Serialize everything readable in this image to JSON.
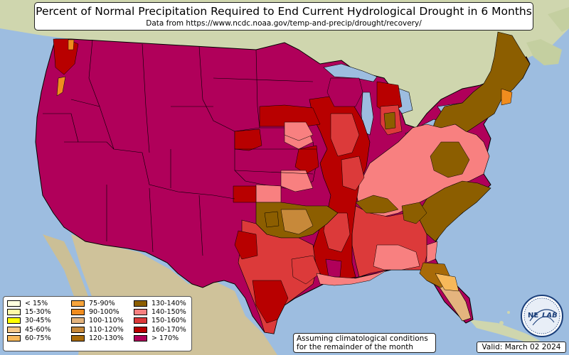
{
  "title": "Percent of Normal Precipitation Required to End Current Hydrological Drought in 6 Months",
  "subtitle": "Data from https://www.ncdc.noaa.gov/temp-and-precip/drought/recovery/",
  "legend": [
    {
      "label": "< 15%",
      "color": "#ffffe0"
    },
    {
      "label": "15-30%",
      "color": "#fff9a8"
    },
    {
      "label": "30-45%",
      "color": "#ffff00"
    },
    {
      "label": "45-60%",
      "color": "#f5c889"
    },
    {
      "label": "60-75%",
      "color": "#f7b85a"
    },
    {
      "label": "75-90%",
      "color": "#f7a43c"
    },
    {
      "label": "90-100%",
      "color": "#f08c1e"
    },
    {
      "label": "100-110%",
      "color": "#e4b47e"
    },
    {
      "label": "110-120%",
      "color": "#c7893a"
    },
    {
      "label": "120-130%",
      "color": "#a86a08"
    },
    {
      "label": "130-140%",
      "color": "#8c5e00"
    },
    {
      "label": "140-150%",
      "color": "#f88080"
    },
    {
      "label": "150-160%",
      "color": "#dc3a3a"
    },
    {
      "label": "160-170%",
      "color": "#b80000"
    },
    {
      "label": "> 170%",
      "color": "#b0005a"
    }
  ],
  "note": {
    "line1": "Assuming climatological conditions",
    "line2": "for the remainder of the month"
  },
  "valid": "Valid: March 02 2024",
  "logo": {
    "text_left": "NE",
    "text_right": "LAB",
    "icon": "nexlab-globe-logo"
  },
  "colors": {
    "ocean": "#9dbde0",
    "land": "#cfd6ae",
    "gt170": "#b0005a",
    "c160_170": "#b80000",
    "c150_160": "#dc3a3a",
    "c140_150": "#f88080",
    "c130_140": "#8c5e00",
    "c120_130": "#a86a08",
    "c110_120": "#c7893a",
    "c100_110": "#e4b47e",
    "c90_100": "#f08c1e"
  }
}
